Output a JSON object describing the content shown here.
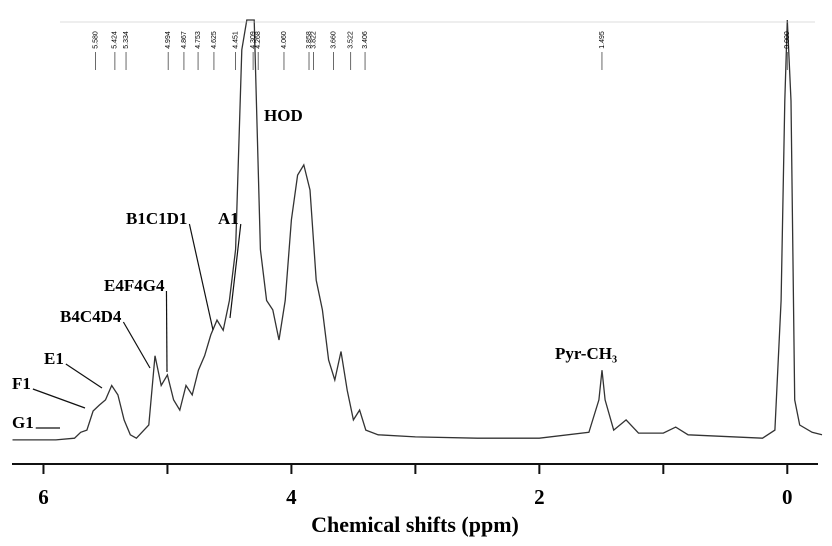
{
  "chart_data": {
    "type": "line",
    "x_label": "Chemical shifts (ppm)",
    "xlim": [
      6.27,
      -0.28
    ],
    "xticks": [
      6,
      4,
      2,
      0
    ],
    "xminor": [
      5,
      3,
      1
    ],
    "ylim": [
      0,
      100
    ],
    "color": "#333333",
    "series": [
      {
        "x": [
          6.25,
          5.9,
          5.75,
          5.7,
          5.65,
          5.6,
          5.55,
          5.5,
          5.45,
          5.4,
          5.35,
          5.3,
          5.25,
          5.15,
          5.1,
          5.05,
          5.0,
          4.95,
          4.9,
          4.85,
          4.8,
          4.75,
          4.7,
          4.65,
          4.6,
          4.55,
          4.5,
          4.45,
          4.4,
          4.36,
          4.3,
          4.25,
          4.2,
          4.15,
          4.1,
          4.05,
          4.0,
          3.95,
          3.9,
          3.85,
          3.8,
          3.75,
          3.7,
          3.65,
          3.6,
          3.55,
          3.5,
          3.45,
          3.4,
          3.3,
          3.0,
          2.5,
          2.0,
          1.6,
          1.52,
          1.495,
          1.47,
          1.4,
          1.3,
          1.2,
          1.0,
          0.9,
          0.8,
          0.2,
          0.1,
          0.05,
          0.02,
          0.0,
          -0.03,
          -0.06,
          -0.1,
          -0.2,
          -0.28
        ],
        "values": [
          1.2,
          1.2,
          1.6,
          3,
          3.5,
          8,
          9.4,
          10.6,
          14,
          11.8,
          5.9,
          2.4,
          1.6,
          4.7,
          21,
          14,
          16.5,
          10.6,
          8.2,
          14,
          11.8,
          17.6,
          21,
          25.9,
          29.4,
          27,
          34,
          46,
          93,
          100,
          100,
          46,
          34,
          31.8,
          24.7,
          34,
          53,
          63.5,
          65.9,
          60,
          38.8,
          31.8,
          20,
          15.3,
          22,
          12.9,
          5.9,
          8.2,
          3.5,
          2.4,
          1.9,
          1.6,
          1.6,
          3,
          10.6,
          17.6,
          10.6,
          3.5,
          5.9,
          2.8,
          2.8,
          4.2,
          2.4,
          1.6,
          3.5,
          34,
          81,
          100,
          81,
          10.6,
          4.7,
          3,
          2.4
        ]
      }
    ],
    "peak_list": [
      {
        "value": 5.58,
        "label": "5.580"
      },
      {
        "value": 5.424,
        "label": "5.424"
      },
      {
        "value": 5.334,
        "label": "5.334"
      },
      {
        "value": 4.994,
        "label": "4.994"
      },
      {
        "value": 4.867,
        "label": "4.867"
      },
      {
        "value": 4.753,
        "label": "4.753"
      },
      {
        "value": 4.625,
        "label": "4.625"
      },
      {
        "value": 4.451,
        "label": "4.451"
      },
      {
        "value": 4.309,
        "label": "4.309"
      },
      {
        "value": 4.268,
        "label": "4.268"
      },
      {
        "value": 4.06,
        "label": "4.060"
      },
      {
        "value": 3.858,
        "label": "3.858"
      },
      {
        "value": 3.822,
        "label": "3.822"
      },
      {
        "value": 3.66,
        "label": "3.660"
      },
      {
        "value": 3.522,
        "label": "3.522"
      },
      {
        "value": 3.406,
        "label": "3.406"
      },
      {
        "value": 1.495,
        "label": "1.495"
      },
      {
        "value": 0,
        "label": "0.000"
      }
    ],
    "annotations": [
      {
        "text": "G1",
        "x": 5.7
      },
      {
        "text": "F1",
        "x": 5.58
      },
      {
        "text": "E1",
        "x": 5.45
      },
      {
        "text": "B4C4D4",
        "x": 5.12
      },
      {
        "text": "E4F4G4",
        "x": 5.0
      },
      {
        "text": "B1C1D1",
        "x": 4.63
      },
      {
        "text": "A1",
        "x": 4.5
      },
      {
        "text": "HOD",
        "x": 4.35
      },
      {
        "text": "Pyr-CH₃",
        "x": 1.495
      }
    ]
  }
}
